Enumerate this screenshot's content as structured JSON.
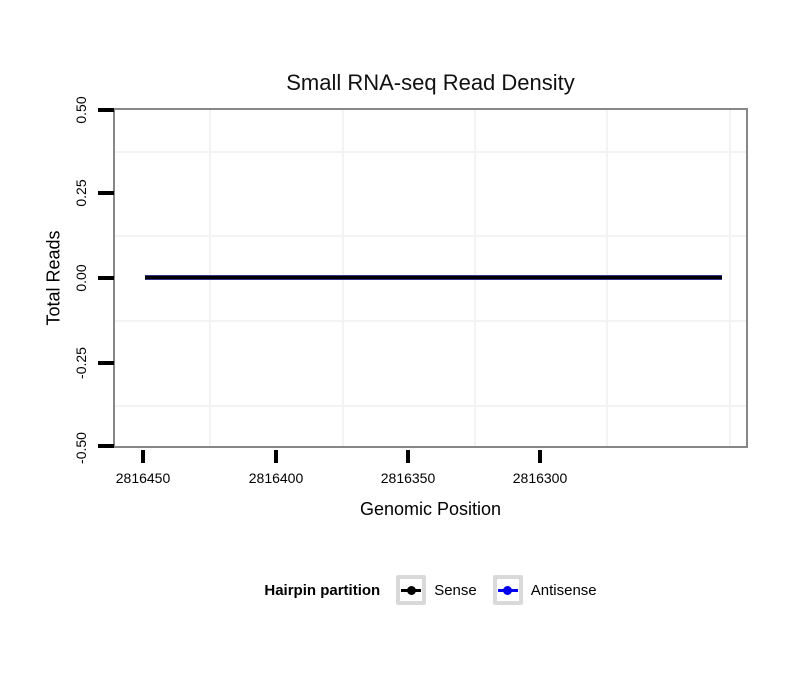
{
  "chart_data": {
    "type": "line",
    "title": "Small RNA-seq Read Density",
    "xlabel": "Genomic Position",
    "ylabel": "Total Reads",
    "x_ticks": [
      2816450,
      2816400,
      2816350,
      2816300
    ],
    "x_tick_labels": [
      "2816450",
      "2816400",
      "2816350",
      "2816300"
    ],
    "x_axis_reversed": true,
    "xlim": [
      2816460,
      2816220
    ],
    "y_ticks": [
      0.5,
      0.25,
      0.0,
      -0.25,
      -0.5
    ],
    "y_tick_labels": [
      "0.50",
      "0.25",
      "0.00",
      "-0.25",
      "-0.50"
    ],
    "ylim": [
      -0.5,
      0.5
    ],
    "grid": "very light minor gridlines only, white panel with grey border",
    "legend": {
      "title": "Hairpin partition",
      "position": "bottom",
      "items": [
        {
          "label": "Sense",
          "color": "#000000"
        },
        {
          "label": "Antisense",
          "color": "#0000ee"
        }
      ]
    },
    "series": [
      {
        "name": "Sense",
        "color": "#000000",
        "x": [
          2816449,
          2816231
        ],
        "y": [
          0,
          0
        ]
      },
      {
        "name": "Antisense",
        "color": "#0000ee",
        "x": [
          2816449,
          2816231
        ],
        "y": [
          0,
          0
        ]
      }
    ]
  },
  "colors": {
    "background": "#ffffff",
    "panel_border": "#878787",
    "minor_grid": "#f3f3f3",
    "axis_text": "#000000",
    "legend_key_border": "#d9d9d9",
    "sense": "#000000",
    "antisense": "#0000ee",
    "overlap_line_edge": "#32328c"
  }
}
